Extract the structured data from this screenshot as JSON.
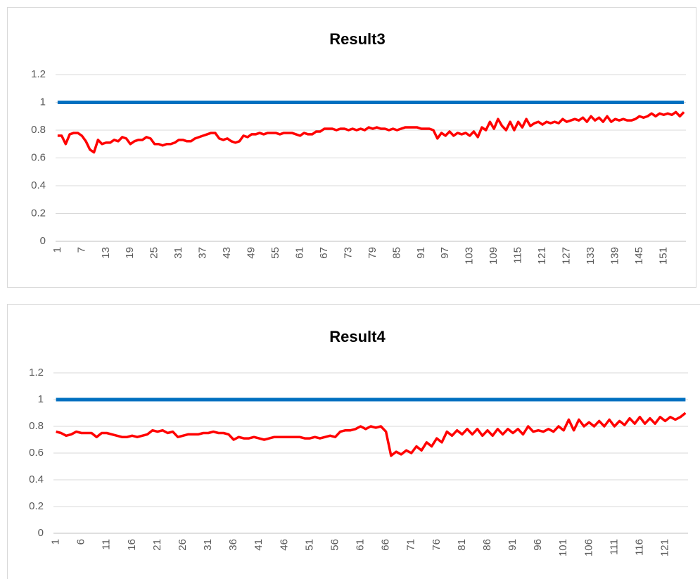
{
  "chart_data": [
    {
      "type": "line",
      "title": "Result3",
      "categories": [
        1,
        null,
        null,
        null,
        null,
        null,
        7,
        null,
        null,
        null,
        null,
        null,
        13,
        null,
        null,
        null,
        null,
        null,
        19,
        null,
        null,
        null,
        null,
        null,
        25,
        null,
        null,
        null,
        null,
        null,
        31,
        null,
        null,
        null,
        null,
        null,
        37,
        null,
        null,
        null,
        null,
        null,
        43,
        null,
        null,
        null,
        null,
        null,
        49,
        null,
        null,
        null,
        null,
        null,
        55,
        null,
        null,
        null,
        null,
        null,
        61,
        null,
        null,
        null,
        null,
        null,
        67,
        null,
        null,
        null,
        null,
        null,
        73,
        null,
        null,
        null,
        null,
        null,
        79,
        null,
        null,
        null,
        null,
        null,
        85,
        null,
        null,
        null,
        null,
        null,
        91,
        null,
        null,
        null,
        null,
        null,
        97,
        null,
        null,
        null,
        null,
        null,
        103,
        null,
        null,
        null,
        null,
        null,
        109,
        null,
        null,
        null,
        null,
        null,
        115,
        null,
        null,
        null,
        null,
        null,
        121,
        null,
        null,
        null,
        null,
        null,
        127,
        null,
        null,
        null,
        null,
        null,
        133,
        null,
        null,
        null,
        null,
        null,
        139,
        null,
        null,
        null,
        null,
        null,
        145,
        null,
        null,
        null,
        null,
        null,
        151,
        null,
        null,
        null,
        null,
        null
      ],
      "series": [
        {
          "color": "#0070c0",
          "values": [
            1,
            1,
            1,
            1,
            1,
            1,
            1,
            1,
            1,
            1,
            1,
            1,
            1,
            1,
            1,
            1,
            1,
            1,
            1,
            1,
            1,
            1,
            1,
            1,
            1,
            1,
            1,
            1,
            1,
            1,
            1,
            1,
            1,
            1,
            1,
            1,
            1,
            1,
            1,
            1,
            1,
            1,
            1,
            1,
            1,
            1,
            1,
            1,
            1,
            1,
            1,
            1,
            1,
            1,
            1,
            1,
            1,
            1,
            1,
            1,
            1,
            1,
            1,
            1,
            1,
            1,
            1,
            1,
            1,
            1,
            1,
            1,
            1,
            1,
            1,
            1,
            1,
            1,
            1,
            1,
            1,
            1,
            1,
            1,
            1,
            1,
            1,
            1,
            1,
            1,
            1,
            1,
            1,
            1,
            1,
            1,
            1,
            1,
            1,
            1,
            1,
            1,
            1,
            1,
            1,
            1,
            1,
            1,
            1,
            1,
            1,
            1,
            1,
            1,
            1,
            1,
            1,
            1,
            1,
            1,
            1,
            1,
            1,
            1,
            1,
            1,
            1,
            1,
            1,
            1,
            1,
            1,
            1,
            1,
            1,
            1,
            1,
            1,
            1,
            1,
            1,
            1,
            1,
            1,
            1,
            1,
            1,
            1,
            1,
            1,
            1,
            1,
            1,
            1,
            1,
            1
          ]
        },
        {
          "color": "#ff0000",
          "values": [
            0.76,
            0.76,
            0.7,
            0.77,
            0.78,
            0.78,
            0.76,
            0.72,
            0.66,
            0.64,
            0.73,
            0.7,
            0.71,
            0.71,
            0.73,
            0.72,
            0.75,
            0.74,
            0.7,
            0.72,
            0.73,
            0.73,
            0.75,
            0.74,
            0.7,
            0.7,
            0.69,
            0.7,
            0.7,
            0.71,
            0.73,
            0.73,
            0.72,
            0.72,
            0.74,
            0.75,
            0.76,
            0.77,
            0.78,
            0.78,
            0.74,
            0.73,
            0.74,
            0.72,
            0.71,
            0.72,
            0.76,
            0.75,
            0.77,
            0.77,
            0.78,
            0.77,
            0.78,
            0.78,
            0.78,
            0.77,
            0.78,
            0.78,
            0.78,
            0.77,
            0.76,
            0.78,
            0.77,
            0.77,
            0.79,
            0.79,
            0.81,
            0.81,
            0.81,
            0.8,
            0.81,
            0.81,
            0.8,
            0.81,
            0.8,
            0.81,
            0.8,
            0.82,
            0.81,
            0.82,
            0.81,
            0.81,
            0.8,
            0.81,
            0.8,
            0.81,
            0.82,
            0.82,
            0.82,
            0.82,
            0.81,
            0.81,
            0.81,
            0.8,
            0.74,
            0.78,
            0.76,
            0.79,
            0.76,
            0.78,
            0.77,
            0.78,
            0.76,
            0.79,
            0.75,
            0.82,
            0.8,
            0.86,
            0.81,
            0.88,
            0.83,
            0.8,
            0.86,
            0.8,
            0.86,
            0.82,
            0.88,
            0.83,
            0.85,
            0.86,
            0.84,
            0.86,
            0.85,
            0.86,
            0.85,
            0.88,
            0.86,
            0.87,
            0.88,
            0.87,
            0.89,
            0.86,
            0.9,
            0.87,
            0.89,
            0.86,
            0.9,
            0.86,
            0.88,
            0.87,
            0.88,
            0.87,
            0.87,
            0.88,
            0.9,
            0.89,
            0.9,
            0.92,
            0.9,
            0.92,
            0.91,
            0.92,
            0.91,
            0.93,
            0.9,
            0.93
          ]
        }
      ],
      "ylim": [
        0,
        1.2
      ],
      "yticks": [
        0,
        0.2,
        0.4,
        0.6,
        0.8,
        1,
        1.2
      ],
      "grid": true
    },
    {
      "type": "line",
      "title": "Result4",
      "categories": [
        1,
        null,
        null,
        null,
        null,
        6,
        null,
        null,
        null,
        null,
        11,
        null,
        null,
        null,
        null,
        16,
        null,
        null,
        null,
        null,
        21,
        null,
        null,
        null,
        null,
        26,
        null,
        null,
        null,
        null,
        31,
        null,
        null,
        null,
        null,
        36,
        null,
        null,
        null,
        null,
        41,
        null,
        null,
        null,
        null,
        46,
        null,
        null,
        null,
        null,
        51,
        null,
        null,
        null,
        null,
        56,
        null,
        null,
        null,
        null,
        61,
        null,
        null,
        null,
        null,
        66,
        null,
        null,
        null,
        null,
        71,
        null,
        null,
        null,
        null,
        76,
        null,
        null,
        null,
        null,
        81,
        null,
        null,
        null,
        null,
        86,
        null,
        null,
        null,
        null,
        91,
        null,
        null,
        null,
        null,
        96,
        null,
        null,
        null,
        null,
        101,
        null,
        null,
        null,
        null,
        106,
        null,
        null,
        null,
        null,
        111,
        null,
        null,
        null,
        null,
        116,
        null,
        null,
        null,
        null,
        121,
        null,
        null,
        null,
        null
      ],
      "series": [
        {
          "color": "#0070c0",
          "values": [
            1,
            1,
            1,
            1,
            1,
            1,
            1,
            1,
            1,
            1,
            1,
            1,
            1,
            1,
            1,
            1,
            1,
            1,
            1,
            1,
            1,
            1,
            1,
            1,
            1,
            1,
            1,
            1,
            1,
            1,
            1,
            1,
            1,
            1,
            1,
            1,
            1,
            1,
            1,
            1,
            1,
            1,
            1,
            1,
            1,
            1,
            1,
            1,
            1,
            1,
            1,
            1,
            1,
            1,
            1,
            1,
            1,
            1,
            1,
            1,
            1,
            1,
            1,
            1,
            1,
            1,
            1,
            1,
            1,
            1,
            1,
            1,
            1,
            1,
            1,
            1,
            1,
            1,
            1,
            1,
            1,
            1,
            1,
            1,
            1,
            1,
            1,
            1,
            1,
            1,
            1,
            1,
            1,
            1,
            1,
            1,
            1,
            1,
            1,
            1,
            1,
            1,
            1,
            1,
            1,
            1,
            1,
            1,
            1,
            1,
            1,
            1,
            1,
            1,
            1,
            1,
            1,
            1,
            1,
            1,
            1,
            1,
            1,
            1,
            1
          ]
        },
        {
          "color": "#ff0000",
          "values": [
            0.76,
            0.75,
            0.73,
            0.74,
            0.76,
            0.75,
            0.75,
            0.75,
            0.72,
            0.75,
            0.75,
            0.74,
            0.73,
            0.72,
            0.72,
            0.73,
            0.72,
            0.73,
            0.74,
            0.77,
            0.76,
            0.77,
            0.75,
            0.76,
            0.72,
            0.73,
            0.74,
            0.74,
            0.74,
            0.75,
            0.75,
            0.76,
            0.75,
            0.75,
            0.74,
            0.7,
            0.72,
            0.71,
            0.71,
            0.72,
            0.71,
            0.7,
            0.71,
            0.72,
            0.72,
            0.72,
            0.72,
            0.72,
            0.72,
            0.71,
            0.71,
            0.72,
            0.71,
            0.72,
            0.73,
            0.72,
            0.76,
            0.77,
            0.77,
            0.78,
            0.8,
            0.78,
            0.8,
            0.79,
            0.8,
            0.76,
            0.58,
            0.61,
            0.59,
            0.62,
            0.6,
            0.65,
            0.62,
            0.68,
            0.65,
            0.71,
            0.68,
            0.76,
            0.73,
            0.77,
            0.74,
            0.78,
            0.74,
            0.78,
            0.73,
            0.77,
            0.73,
            0.78,
            0.74,
            0.78,
            0.75,
            0.78,
            0.74,
            0.8,
            0.76,
            0.77,
            0.76,
            0.78,
            0.76,
            0.8,
            0.77,
            0.85,
            0.77,
            0.85,
            0.8,
            0.83,
            0.8,
            0.84,
            0.8,
            0.85,
            0.8,
            0.84,
            0.81,
            0.86,
            0.82,
            0.87,
            0.82,
            0.86,
            0.82,
            0.87,
            0.84,
            0.87,
            0.85,
            0.87,
            0.9
          ]
        }
      ],
      "ylim": [
        0,
        1.2
      ],
      "yticks": [
        0,
        0.2,
        0.4,
        0.6,
        0.8,
        1,
        1.2
      ],
      "grid": true
    }
  ]
}
